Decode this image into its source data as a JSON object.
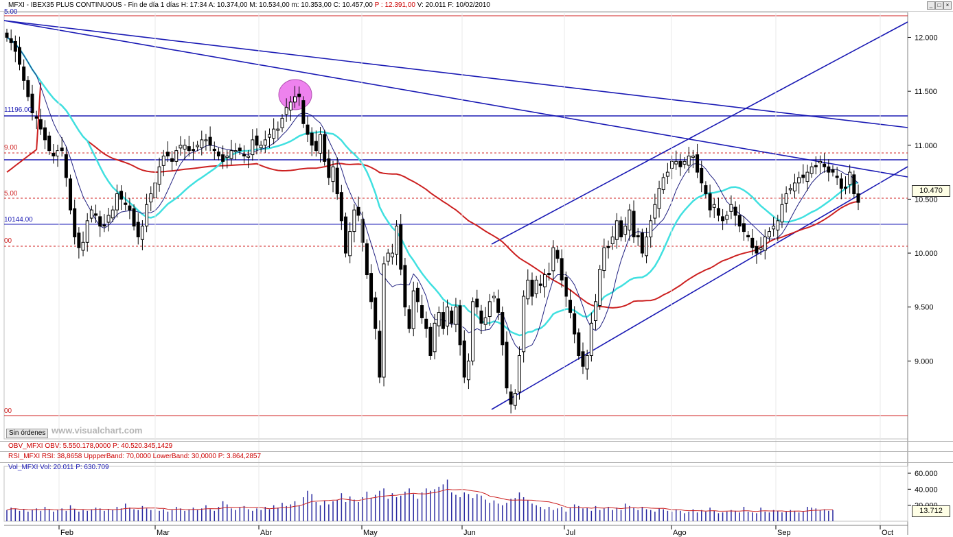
{
  "titlebar": {
    "text": "MFXI - IBEX35 PLUS CONTINUOUS - Fin de día 1 días  H: 17:34  A: 10.374,00  M: 10.534,00  m: 10.353,00  C: 10.457,00 ",
    "p_text": "P : 12.391,00",
    "tail": "  V: 20.011  F: 10/02/2010"
  },
  "window_buttons": [
    "_",
    "□",
    "×"
  ],
  "price_axis": {
    "ticks": [
      "12.000",
      "11.500",
      "11.000",
      "10.500",
      "10.000",
      "9.500",
      "9.000"
    ],
    "last_price_tag": "10.470"
  },
  "level_labels": {
    "top": "5.00",
    "l11196": "11196.00",
    "l9": "9.00",
    "l5": "5.00",
    "l10144": "10144.00",
    "l00a": "00",
    "l00b": "00"
  },
  "sin_ordenes": "Sin órdenes",
  "watermark": "www.visualchart.com",
  "indicators": {
    "obv": "OBV_MFXI  OBV: 5.550.178,0000  P: 40.520.345,1429",
    "rsi": "RSI_MFXI  RSI: 38,8658  UppperBand: 70,0000  LowerBand: 30,0000  P: 3.864,2857",
    "vol": "Vol_MFXI  Vol: 20.011  P: 630.709"
  },
  "volume_axis": {
    "ticks": [
      "60.000",
      "40.000",
      "20.000"
    ],
    "last_tag": "13.712"
  },
  "months": [
    "Feb",
    "Mar",
    "Abr",
    "May",
    "Jun",
    "Jul",
    "Ago",
    "Sep",
    "Oct"
  ],
  "colors": {
    "candle": "#000000",
    "trendline": "#1a1ab4",
    "ma_long": "#cc2020",
    "ma_mid": "#40e0e0",
    "ma_short": "#202080",
    "dashed_level": "#d02020",
    "volume_bar": "#2a2aa0",
    "highlight": "#ee82ee"
  },
  "chart_data": {
    "type": "candlestick",
    "y_axis_range": [
      8500,
      12200
    ],
    "closes": [
      12000,
      11950,
      11870,
      11750,
      11600,
      11450,
      11300,
      11250,
      11150,
      11050,
      10950,
      10900,
      10950,
      10950,
      10700,
      10400,
      10150,
      10050,
      10100,
      10300,
      10400,
      10350,
      10250,
      10250,
      10350,
      10400,
      10550,
      10500,
      10450,
      10400,
      10250,
      10150,
      10250,
      10450,
      10550,
      10650,
      10800,
      10900,
      10900,
      10850,
      10950,
      11000,
      11000,
      10950,
      10950,
      11000,
      11050,
      11050,
      11000,
      10950,
      10900,
      10850,
      10900,
      10950,
      10950,
      10950,
      10900,
      10900,
      11050,
      11000,
      11000,
      11050,
      11100,
      11150,
      11150,
      11250,
      11350,
      11400,
      11450,
      11450,
      11200,
      11100,
      11000,
      10950,
      11100,
      10850,
      10700,
      10800,
      10550,
      10300,
      10000,
      10200,
      10400,
      10350,
      10100,
      9800,
      9550,
      9300,
      8850,
      9900,
      10000,
      10000,
      10250,
      9850,
      9500,
      9300,
      9650,
      9550,
      9400,
      9300,
      9050,
      9350,
      9450,
      9300,
      9500,
      9350,
      9500,
      9150,
      8850,
      9000,
      9550,
      9500,
      9350,
      9400,
      9550,
      9600,
      9450,
      9150,
      8750,
      8600,
      8700,
      9050,
      9600,
      9750,
      9600,
      9750,
      9700,
      9800,
      9800,
      10050,
      9950,
      9750,
      9600,
      9450,
      9250,
      9050,
      8950,
      9050,
      9350,
      9550,
      9850,
      10050,
      10050,
      10150,
      10300,
      10150,
      10250,
      10400,
      10150,
      10150,
      10000,
      10150,
      10300,
      10450,
      10600,
      10700,
      10750,
      10850,
      10850,
      10800,
      10850,
      10900,
      10900,
      10750,
      10650,
      10550,
      10400,
      10450,
      10350,
      10300,
      10350,
      10450,
      10350,
      10250,
      10200,
      10150,
      10050,
      10000,
      10050,
      10150,
      10200,
      10250,
      10300,
      10450,
      10550,
      10600,
      10650,
      10700,
      10700,
      10750,
      10800,
      10800,
      10850,
      10800,
      10750,
      10750,
      10700,
      10600,
      10600,
      10750,
      10550,
      10470
    ],
    "volumes": [
      14000,
      17000,
      16000,
      13000,
      15000,
      12000,
      14000,
      16000,
      13000,
      18000,
      15000,
      12000,
      14000,
      16000,
      13000,
      20000,
      15000,
      12000,
      14000,
      13000,
      15000,
      17000,
      16000,
      13000,
      15000,
      14000,
      18000,
      16000,
      22000,
      17000,
      15000,
      14000,
      19000,
      16000,
      14000,
      15000,
      13000,
      15000,
      12000,
      14000,
      18000,
      16000,
      13000,
      15000,
      17000,
      14000,
      16000,
      20000,
      15000,
      13000,
      18000,
      25000,
      21000,
      16000,
      14000,
      17000,
      19000,
      15000,
      13000,
      16000,
      14000,
      18000,
      15000,
      20000,
      17000,
      23000,
      19000,
      21000,
      25000,
      20000,
      30000,
      38000,
      34000,
      24000,
      20000,
      26000,
      21000,
      25000,
      27000,
      35000,
      24000,
      31000,
      27000,
      24000,
      30000,
      37000,
      29000,
      33000,
      38000,
      41000,
      28000,
      35000,
      30000,
      32000,
      37000,
      41000,
      34000,
      28000,
      36000,
      41000,
      38000,
      40000,
      43000,
      46000,
      52000,
      36000,
      33000,
      30000,
      36000,
      34000,
      29000,
      34000,
      32000,
      27000,
      23000,
      26000,
      22000,
      20000,
      23000,
      28000,
      29000,
      36000,
      30000,
      26000,
      22000,
      20000,
      18000,
      15000,
      18000,
      14000,
      16000,
      18000,
      12000,
      17000,
      21000,
      19000,
      16000,
      17000,
      13000,
      19000,
      14000,
      16000,
      18000,
      14000,
      17000,
      14000,
      22000,
      19000,
      17000,
      14000,
      18000,
      15000,
      14000,
      12000,
      16000,
      15000,
      13000,
      12000,
      15000,
      13000,
      10000,
      12000,
      15000,
      11000,
      14000,
      12000,
      17000,
      13000,
      10000,
      11000,
      12000,
      14000,
      13000,
      11000,
      18000,
      12000,
      11000,
      10000,
      17000,
      12000,
      11000,
      14000,
      13000,
      11000,
      12000,
      14000,
      13000,
      11000,
      12000,
      18000,
      17000,
      16000,
      14000,
      15000,
      13000,
      14000
    ],
    "months": [
      "Feb",
      "Mar",
      "Abr",
      "May",
      "Jun",
      "Jul",
      "Ago",
      "Sep",
      "Oct"
    ]
  }
}
